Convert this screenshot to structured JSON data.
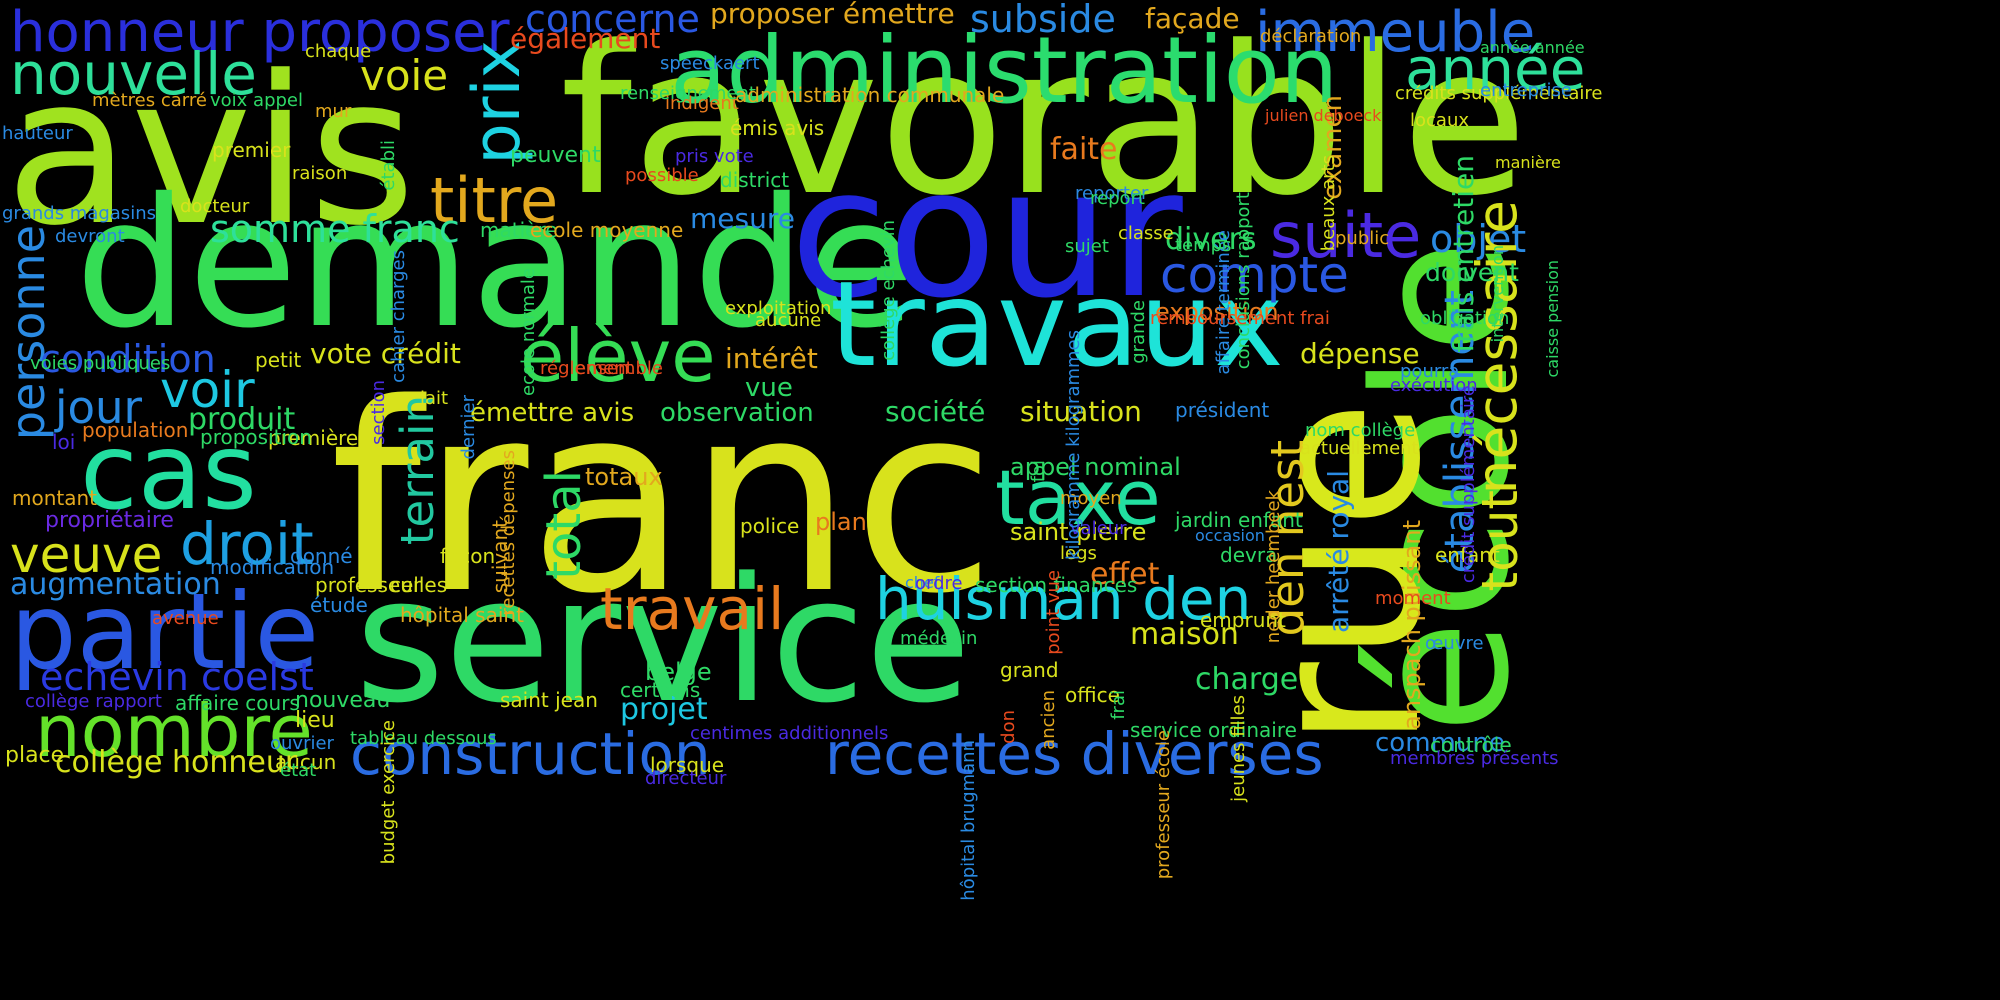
{
  "words": [
    {
      "text": "franc",
      "color": "#d8e21c"
    },
    {
      "text": "favorable",
      "color": "#98e11e"
    },
    {
      "text": "avis",
      "color": "#a0e21f"
    },
    {
      "text": "service",
      "color": "#2ed966"
    },
    {
      "text": "demande",
      "color": "#35dd55"
    },
    {
      "text": "cour",
      "color": "#1f24dc"
    },
    {
      "text": "école",
      "color": "#52e02f"
    },
    {
      "text": "rue",
      "color": "#d8e81c"
    },
    {
      "text": "travaux",
      "color": "#1ee3d8"
    },
    {
      "text": "administration",
      "color": "#2bdc6e"
    },
    {
      "text": "cas",
      "color": "#22dfa0"
    },
    {
      "text": "partie",
      "color": "#2a58e2"
    },
    {
      "text": "honneur proposer",
      "color": "#2a2fdc"
    },
    {
      "text": "construction",
      "color": "#2a6ce2"
    },
    {
      "text": "recettes diverses",
      "color": "#2a6ce2"
    },
    {
      "text": "nombre",
      "color": "#64e22a"
    },
    {
      "text": "travail",
      "color": "#e87a1e"
    },
    {
      "text": "huisman den",
      "color": "#1ed2e2"
    },
    {
      "text": "taxe",
      "color": "#22dfa0"
    },
    {
      "text": "élève",
      "color": "#35dd55"
    },
    {
      "text": "nouvelle",
      "color": "#2ee09a"
    },
    {
      "text": "immeuble",
      "color": "#2a6ce2"
    },
    {
      "text": "année",
      "color": "#2ee09a"
    },
    {
      "text": "titre",
      "color": "#e2a81e"
    },
    {
      "text": "prix",
      "color": "#1ed2e2"
    },
    {
      "text": "voie",
      "color": "#d8e21c"
    },
    {
      "text": "droit",
      "color": "#1ea0e2"
    },
    {
      "text": "veuve",
      "color": "#d8e21c"
    },
    {
      "text": "voir",
      "color": "#1ec8e2"
    },
    {
      "text": "jour",
      "color": "#2a8ae2"
    },
    {
      "text": "personne",
      "color": "#2a8ae2"
    },
    {
      "text": "somme franc",
      "color": "#2ee09a"
    },
    {
      "text": "condition",
      "color": "#2a58e2"
    },
    {
      "text": "echevin coelst",
      "color": "#2a3ae2"
    },
    {
      "text": "suite",
      "color": "#4a2ae2"
    },
    {
      "text": "compte",
      "color": "#2a58e2"
    },
    {
      "text": "objet",
      "color": "#2a8ae2"
    },
    {
      "text": "nécessaire",
      "color": "#d8e21c"
    },
    {
      "text": "établissement",
      "color": "#2a8ae2"
    },
    {
      "text": "tout",
      "color": "#d8e21c"
    },
    {
      "text": "den nest",
      "color": "#e2c81e"
    },
    {
      "text": "total",
      "color": "#2ed966"
    },
    {
      "text": "terrain",
      "color": "#22c8a0"
    },
    {
      "text": "effet",
      "color": "#e87a1e"
    },
    {
      "text": "charge",
      "color": "#2ed966"
    },
    {
      "text": "maison",
      "color": "#d8e21c"
    },
    {
      "text": "projet",
      "color": "#1ec8e2"
    },
    {
      "text": "augmentation",
      "color": "#2a8ae2"
    },
    {
      "text": "collège honneur",
      "color": "#d8e21c"
    },
    {
      "text": "subside",
      "color": "#2a8ae2"
    },
    {
      "text": "façade",
      "color": "#e2a81e"
    },
    {
      "text": "concerne",
      "color": "#2a58e2"
    },
    {
      "text": "proposer émettre",
      "color": "#e2a81e"
    },
    {
      "text": "également",
      "color": "#e84a1e"
    },
    {
      "text": "faite",
      "color": "#e87a1e"
    },
    {
      "text": "examen",
      "color": "#e2a81e"
    },
    {
      "text": "divers",
      "color": "#2ed966"
    },
    {
      "text": "doivent",
      "color": "#2ed966"
    },
    {
      "text": "exposition",
      "color": "#e87a1e"
    },
    {
      "text": "dépense",
      "color": "#d8e21c"
    },
    {
      "text": "situation",
      "color": "#d8e21c"
    },
    {
      "text": "société",
      "color": "#2ed966"
    },
    {
      "text": "observation",
      "color": "#2ed966"
    },
    {
      "text": "émettre avis",
      "color": "#d8e21c"
    },
    {
      "text": "intérêt",
      "color": "#e2a81e"
    },
    {
      "text": "vue",
      "color": "#2ed966"
    },
    {
      "text": "vote crédit",
      "color": "#d8e21c"
    },
    {
      "text": "produit",
      "color": "#2ed966"
    },
    {
      "text": "mesure",
      "color": "#2a8ae2"
    },
    {
      "text": "frais entretien",
      "color": "#2ed966"
    },
    {
      "text": "arrêté royal",
      "color": "#2a8ae2"
    },
    {
      "text": "anspach puissant",
      "color": "#e2a81e"
    },
    {
      "text": "commune",
      "color": "#2a8ae2"
    },
    {
      "text": "appel nominal",
      "color": "#2ed966"
    },
    {
      "text": "saint pierre",
      "color": "#d8e21c"
    },
    {
      "text": "plan",
      "color": "#e87a1e"
    },
    {
      "text": "belge",
      "color": "#2ed966"
    },
    {
      "text": "totaux",
      "color": "#e2a81e"
    },
    {
      "text": "matière",
      "color": "#2ed966"
    },
    {
      "text": "ecole moyenne",
      "color": "#e2a81e"
    },
    {
      "text": "peuvent",
      "color": "#2ed966"
    },
    {
      "text": "nouveau",
      "color": "#2ed966"
    },
    {
      "text": "lieu",
      "color": "#d8e21c"
    },
    {
      "text": "affaire cours",
      "color": "#2ed966"
    },
    {
      "text": "propriétaire",
      "color": "#6a2ae2"
    },
    {
      "text": "montant",
      "color": "#e2a81e"
    },
    {
      "text": "population",
      "color": "#e87a1e"
    },
    {
      "text": "loi",
      "color": "#4a2ae2"
    },
    {
      "text": "première",
      "color": "#d8e21c"
    },
    {
      "text": "petit",
      "color": "#d8e21c"
    },
    {
      "text": "proposition",
      "color": "#2ed966"
    },
    {
      "text": "donné",
      "color": "#2a8ae2"
    },
    {
      "text": "modification",
      "color": "#2a8ae2"
    },
    {
      "text": "avenue",
      "color": "#e84a1e"
    },
    {
      "text": "professeur",
      "color": "#d8e21c"
    },
    {
      "text": "celles",
      "color": "#d8e21c"
    },
    {
      "text": "étude",
      "color": "#2a8ae2"
    },
    {
      "text": "hôpital saint",
      "color": "#e2a81e"
    },
    {
      "text": "façon",
      "color": "#d8e21c"
    },
    {
      "text": "suivant",
      "color": "#e2a81e"
    },
    {
      "text": "police",
      "color": "#d8e21c"
    },
    {
      "text": "chef",
      "color": "#2a8ae2"
    },
    {
      "text": "ordre",
      "color": "#4a2ae2"
    },
    {
      "text": "legs",
      "color": "#d8e21c"
    },
    {
      "text": "valeur",
      "color": "#4a2ae2"
    },
    {
      "text": "moyen",
      "color": "#e2a81e"
    },
    {
      "text": "président",
      "color": "#2a8ae2"
    },
    {
      "text": "occasion",
      "color": "#2a8ae2"
    },
    {
      "text": "nom collège",
      "color": "#2ed966"
    },
    {
      "text": "actuellement",
      "color": "#d8e21c"
    },
    {
      "text": "jardin enfant",
      "color": "#2ed966"
    },
    {
      "text": "devra",
      "color": "#2ed966"
    },
    {
      "text": "enfant",
      "color": "#d8e21c"
    },
    {
      "text": "section finances",
      "color": "#2ed966"
    },
    {
      "text": "emprunt",
      "color": "#d8e21c"
    },
    {
      "text": "grand",
      "color": "#d8e21c"
    },
    {
      "text": "office",
      "color": "#d8e21c"
    },
    {
      "text": "service ordinaire",
      "color": "#2ed966"
    },
    {
      "text": "contrôle",
      "color": "#2ed966"
    },
    {
      "text": "membres présents",
      "color": "#4a2ae2"
    },
    {
      "text": "œuvre",
      "color": "#2a8ae2"
    },
    {
      "text": "moment",
      "color": "#e84a1e"
    },
    {
      "text": "saint jean",
      "color": "#d8e21c"
    },
    {
      "text": "certains",
      "color": "#2ed966"
    },
    {
      "text": "lorsque",
      "color": "#d8e21c"
    },
    {
      "text": "centimes additionnels",
      "color": "#4a2ae2"
    },
    {
      "text": "directeur",
      "color": "#4a2ae2"
    },
    {
      "text": "médecin",
      "color": "#2ed966"
    },
    {
      "text": "place",
      "color": "#d8e21c"
    },
    {
      "text": "aucun",
      "color": "#d8e21c"
    },
    {
      "text": "état",
      "color": "#2ed966"
    },
    {
      "text": "tableau dessous",
      "color": "#2ed966"
    },
    {
      "text": "ouvrier",
      "color": "#2a8ae2"
    },
    {
      "text": "collège rapport",
      "color": "#4a2ae2"
    },
    {
      "text": "mètres carré",
      "color": "#e2a81e"
    },
    {
      "text": "voix appel",
      "color": "#2ed966"
    },
    {
      "text": "hauteur",
      "color": "#2a8ae2"
    },
    {
      "text": "premier",
      "color": "#d8e21c"
    },
    {
      "text": "grands magasins",
      "color": "#2a8ae2"
    },
    {
      "text": "devront",
      "color": "#2a8ae2"
    },
    {
      "text": "docteur",
      "color": "#d8e21c"
    },
    {
      "text": "chaque",
      "color": "#d8e21c"
    },
    {
      "text": "mur",
      "color": "#e2a81e"
    },
    {
      "text": "raison",
      "color": "#d8e21c"
    },
    {
      "text": "établi",
      "color": "#2ed966"
    },
    {
      "text": "speeckaert",
      "color": "#2a8ae2"
    },
    {
      "text": "indigent",
      "color": "#e87a1e"
    },
    {
      "text": "émis avis",
      "color": "#d8e21c"
    },
    {
      "text": "pris vote",
      "color": "#4a2ae2"
    },
    {
      "text": "possible",
      "color": "#e84a1e"
    },
    {
      "text": "district",
      "color": "#2ed966"
    },
    {
      "text": "renseignement",
      "color": "#2ed966"
    },
    {
      "text": "administration communale",
      "color": "#e2a81e"
    },
    {
      "text": "déclaration",
      "color": "#e2a81e"
    },
    {
      "text": "crédits supplémentaire",
      "color": "#d8e21c"
    },
    {
      "text": "locaux",
      "color": "#d8e21c"
    },
    {
      "text": "entreprise",
      "color": "#2a8ae2"
    },
    {
      "text": "année année",
      "color": "#2ed966"
    },
    {
      "text": "manière",
      "color": "#d8e21c"
    },
    {
      "text": "intervention",
      "color": "#2ed966"
    },
    {
      "text": "caisse pension",
      "color": "#2ed966"
    },
    {
      "text": "affaire terminée",
      "color": "#2a8ae2"
    },
    {
      "text": "conclusions rapport",
      "color": "#2ed966"
    },
    {
      "text": "beaux arts",
      "color": "#d8e21c"
    },
    {
      "text": "julien deboeck",
      "color": "#e84a1e"
    },
    {
      "text": "public",
      "color": "#e2a81e"
    },
    {
      "text": "reporter",
      "color": "#2a8ae2"
    },
    {
      "text": "sujet",
      "color": "#2ed966"
    },
    {
      "text": "temps",
      "color": "#2ed966"
    },
    {
      "text": "report",
      "color": "#2ed966"
    },
    {
      "text": "classe",
      "color": "#d8e21c"
    },
    {
      "text": "kilogramme kilogrammes",
      "color": "#2a8ae2"
    },
    {
      "text": "grande",
      "color": "#2ed966"
    },
    {
      "text": "remboursement frai",
      "color": "#e84a1e"
    },
    {
      "text": "obligation",
      "color": "#2ed966"
    },
    {
      "text": "pourra",
      "color": "#2a8ae2"
    },
    {
      "text": "exécution",
      "color": "#4a2ae2"
    },
    {
      "text": "exploitation",
      "color": "#d8e21c"
    },
    {
      "text": "aucune",
      "color": "#d8e21c"
    },
    {
      "text": "réglement",
      "color": "#e84a1e"
    },
    {
      "text": "ensemble",
      "color": "#e84a1e"
    },
    {
      "text": "lait",
      "color": "#d8e21c"
    },
    {
      "text": "dernier",
      "color": "#2a8ae2"
    },
    {
      "text": "section",
      "color": "#4a2ae2"
    },
    {
      "text": "crédit supplémentaire",
      "color": "#4a2ae2"
    },
    {
      "text": "collège echevin",
      "color": "#2ed966"
    },
    {
      "text": "cahier charges",
      "color": "#2a8ae2"
    },
    {
      "text": "ecole normale",
      "color": "#2ed966"
    },
    {
      "text": "voies publiques",
      "color": "#2ed966"
    },
    {
      "text": "recettes dépenses",
      "color": "#e2a81e"
    },
    {
      "text": "neder heembeek",
      "color": "#e2a81e"
    },
    {
      "text": "professeur école",
      "color": "#e2a81e"
    },
    {
      "text": "jeunes filles",
      "color": "#d8e21c"
    },
    {
      "text": "don",
      "color": "#e84a1e"
    },
    {
      "text": "hôpital brugmann",
      "color": "#2a8ae2"
    },
    {
      "text": "point vue",
      "color": "#e84a1e"
    },
    {
      "text": "frai",
      "color": "#2ed966"
    },
    {
      "text": "ancien",
      "color": "#e2a81e"
    },
    {
      "text": "foi",
      "color": "#2ed966"
    },
    {
      "text": "budget exercice",
      "color": "#d8e21c"
    }
  ]
}
